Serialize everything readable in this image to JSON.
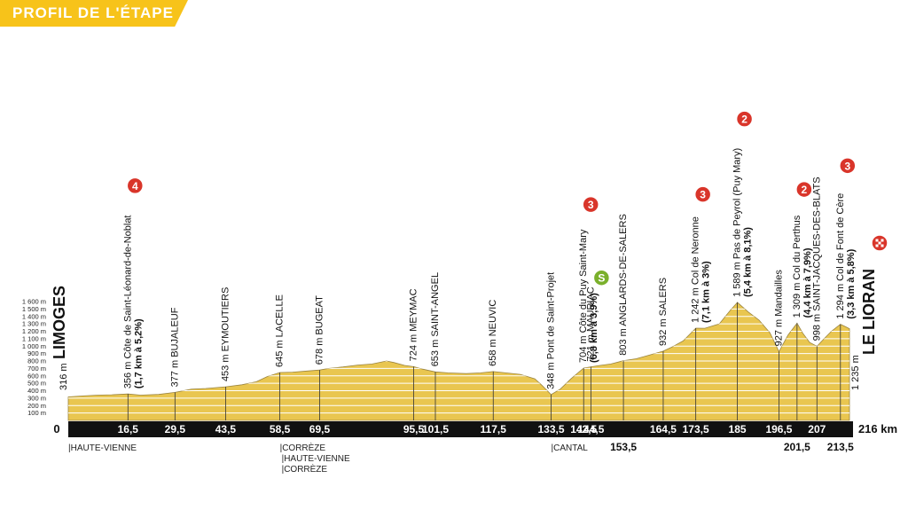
{
  "title": "PROFIL DE L'ÉTAPE",
  "colors": {
    "fill": "#e9c650",
    "banner": "#f7c31a",
    "axis_bar": "#111111",
    "kom_badge": "#d9352a",
    "sprint_badge": "#7ab02b"
  },
  "chart_data": {
    "type": "area",
    "xunit": "km",
    "xlim": [
      0,
      216
    ],
    "ylim": [
      0,
      1600
    ],
    "yticks": [
      "100 m",
      "200 m",
      "300 m",
      "400 m",
      "500 m",
      "600 m",
      "700 m",
      "800 m",
      "900 m",
      "1 000 m",
      "1 100 m",
      "1 200 m",
      "1 300 m",
      "1 400 m",
      "1 500 m",
      "1 600 m"
    ],
    "profile": [
      [
        0,
        316
      ],
      [
        4,
        330
      ],
      [
        8,
        340
      ],
      [
        12,
        345
      ],
      [
        16.5,
        356
      ],
      [
        20,
        340
      ],
      [
        25,
        350
      ],
      [
        29.5,
        377
      ],
      [
        34,
        420
      ],
      [
        38,
        430
      ],
      [
        43.5,
        453
      ],
      [
        48,
        480
      ],
      [
        52,
        520
      ],
      [
        55,
        590
      ],
      [
        58.5,
        645
      ],
      [
        62,
        650
      ],
      [
        66,
        665
      ],
      [
        69.5,
        678
      ],
      [
        72,
        700
      ],
      [
        76,
        720
      ],
      [
        80,
        745
      ],
      [
        84,
        760
      ],
      [
        88,
        800
      ],
      [
        90,
        780
      ],
      [
        93,
        740
      ],
      [
        95.5,
        724
      ],
      [
        98,
        690
      ],
      [
        101.5,
        653
      ],
      [
        105,
        640
      ],
      [
        110,
        630
      ],
      [
        114,
        640
      ],
      [
        117.5,
        658
      ],
      [
        121,
        640
      ],
      [
        125,
        620
      ],
      [
        129,
        560
      ],
      [
        131,
        470
      ],
      [
        133.5,
        348
      ],
      [
        136,
        420
      ],
      [
        139,
        560
      ],
      [
        142.5,
        704
      ],
      [
        144.5,
        721
      ],
      [
        147,
        740
      ],
      [
        150,
        760
      ],
      [
        153.5,
        803
      ],
      [
        157,
        830
      ],
      [
        160,
        870
      ],
      [
        164.5,
        932
      ],
      [
        167,
        990
      ],
      [
        170,
        1070
      ],
      [
        173.5,
        1242
      ],
      [
        176,
        1240
      ],
      [
        180,
        1300
      ],
      [
        183,
        1480
      ],
      [
        185,
        1589
      ],
      [
        188,
        1460
      ],
      [
        191,
        1350
      ],
      [
        194,
        1180
      ],
      [
        196.5,
        927
      ],
      [
        199,
        1150
      ],
      [
        201.5,
        1309
      ],
      [
        203,
        1180
      ],
      [
        205,
        1050
      ],
      [
        207,
        998
      ],
      [
        209,
        1100
      ],
      [
        211,
        1200
      ],
      [
        213.5,
        1294
      ],
      [
        215,
        1260
      ],
      [
        216,
        1235
      ]
    ],
    "xticks": [
      {
        "km": 0,
        "label": "0"
      },
      {
        "km": 16.5,
        "label": "16,5"
      },
      {
        "km": 29.5,
        "label": "29,5"
      },
      {
        "km": 43.5,
        "label": "43,5"
      },
      {
        "km": 58.5,
        "label": "58,5"
      },
      {
        "km": 69.5,
        "label": "69,5"
      },
      {
        "km": 95.5,
        "label": "95,5"
      },
      {
        "km": 101.5,
        "label": "101,5"
      },
      {
        "km": 117.5,
        "label": "117,5"
      },
      {
        "km": 133.5,
        "label": "133,5"
      },
      {
        "km": 142.5,
        "label": "142,5"
      },
      {
        "km": 144.5,
        "label": "144,5"
      },
      {
        "km": 164.5,
        "label": "164,5"
      },
      {
        "km": 173.5,
        "label": "173,5"
      },
      {
        "km": 185,
        "label": "185"
      },
      {
        "km": 196.5,
        "label": "196,5"
      },
      {
        "km": 207,
        "label": "207"
      },
      {
        "km": 216,
        "label": "216 km"
      }
    ],
    "xticks_low": [
      {
        "km": 153.5,
        "label": "153,5"
      },
      {
        "km": 201.5,
        "label": "201,5"
      },
      {
        "km": 213.5,
        "label": "213,5"
      }
    ],
    "waypoints": [
      {
        "km": 0,
        "text": "316 m",
        "bold": "LIMOGES"
      },
      {
        "km": 16.5,
        "text": "356 m  Côte de Saint-Léonard-de-Noblat",
        "bold": "(1,7 km à 5,2%)",
        "badge": "4"
      },
      {
        "km": 29.5,
        "text": "377 m  BUJALEUF"
      },
      {
        "km": 43.5,
        "text": "453 m  EYMOUTIERS"
      },
      {
        "km": 58.5,
        "text": "645 m  LACELLE"
      },
      {
        "km": 69.5,
        "text": "678 m  BUGEAT"
      },
      {
        "km": 95.5,
        "text": "724 m  MEYMAC"
      },
      {
        "km": 101.5,
        "text": "653 m  SAINT-ANGEL"
      },
      {
        "km": 117.5,
        "text": "658 m  NEUVIC"
      },
      {
        "km": 133.5,
        "text": "348 m  Pont de Saint-Projet"
      },
      {
        "km": 142.5,
        "text": "704 m  Côte du Puy Saint-Mary",
        "bold": "(6,8 km à 3,9%)",
        "badge": "3"
      },
      {
        "km": 144.5,
        "text": "721 m  MAURIAC",
        "badge": "S"
      },
      {
        "km": 153.5,
        "text": "803 m  ANGLARDS-DE-SALERS"
      },
      {
        "km": 164.5,
        "text": "932 m  SALERS"
      },
      {
        "km": 173.5,
        "text": "1 242 m  Col de Neronne",
        "bold": "(7,1 km à 3%)",
        "badge": "3"
      },
      {
        "km": 185,
        "text": "1 589 m  Pas de Peyrol (Puy Mary)",
        "bold": "(5,4 km à 8,1%)",
        "badge": "2"
      },
      {
        "km": 196.5,
        "text": "927 m  Mandailles"
      },
      {
        "km": 201.5,
        "text": "1 309 m  Col du Perthus",
        "bold": "(4,4 km à 7,9%)",
        "badge": "2"
      },
      {
        "km": 207,
        "text": "998 m  SAINT-JACQUES-DES-BLATS"
      },
      {
        "km": 213.5,
        "text": "1 294 m  Col de Font de Cère",
        "bold": "(3,3 km à 5,8%)",
        "badge": "3"
      },
      {
        "km": 216,
        "text": "1 235 m",
        "bold": "LE LIORAN",
        "finish": true
      }
    ],
    "regions": [
      {
        "km": 0,
        "labels": [
          "HAUTE-VIENNE"
        ]
      },
      {
        "km": 58.5,
        "labels": [
          "CORRÈZE",
          "HAUTE-VIENNE",
          "CORRÈZE"
        ]
      },
      {
        "km": 133.5,
        "labels": [
          "CANTAL"
        ]
      }
    ]
  }
}
